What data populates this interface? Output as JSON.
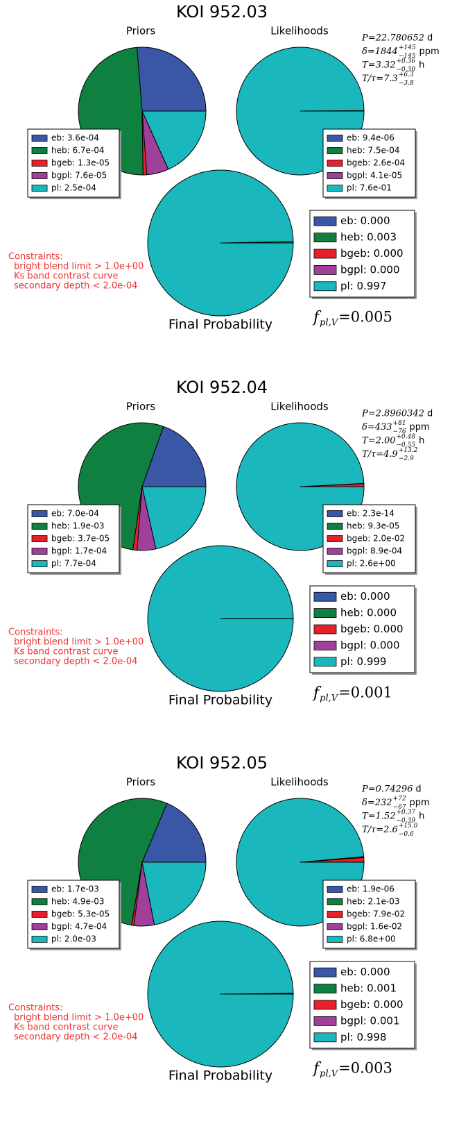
{
  "chart_data": [
    {
      "type": "pie",
      "title": "KOI 952.03",
      "colors": [
        "#3a56a6",
        "#0f8040",
        "#e8202a",
        "#a0409a",
        "#1ab8bc"
      ],
      "priors": {
        "title": "Priors",
        "values": [
          0.00036,
          0.00067,
          1.3e-05,
          7.6e-05,
          0.00025
        ],
        "value_labels": [
          "eb: 3.6e-04",
          "heb: 6.7e-04",
          "bgeb: 1.3e-05",
          "bgpl: 7.6e-05",
          "pl: 2.5e-04"
        ]
      },
      "likelihoods": {
        "title": "Likelihoods",
        "values": [
          9.4e-06,
          0.00075,
          0.00026,
          4.1e-05,
          0.76
        ],
        "value_labels": [
          "eb: 9.4e-06",
          "heb: 7.5e-04",
          "bgeb: 2.6e-04",
          "bgpl: 4.1e-05",
          "pl: 7.6e-01"
        ]
      },
      "final": {
        "title": "Final Probability",
        "values": [
          0,
          0.003,
          0,
          0,
          0.997
        ],
        "value_labels": [
          "eb: 0.000",
          "heb: 0.003",
          "bgeb: 0.000",
          "bgpl: 0.000",
          "pl: 0.997"
        ]
      },
      "stats": [
        {
          "lead": "P=22.780652",
          "unit": "d"
        },
        {
          "lead": "δ=1844",
          "sup": "+145",
          "sub": "−145",
          "unit": "ppm"
        },
        {
          "lead": "T=3.32",
          "sup": "+0.36",
          "sub": "−0.30",
          "unit": "h"
        },
        {
          "lead": "T/τ=7.3",
          "sup": "+6.3",
          "sub": "−3.8"
        }
      ],
      "constraints": [
        "Constraints:",
        "bright blend limit > 1.0e+00",
        "Ks band contrast curve",
        "secondary depth < 2.0e-04"
      ],
      "f_pl": {
        "symbol": "f",
        "sub": "pl,V",
        "text": "=0.005"
      }
    },
    {
      "type": "pie",
      "title": "KOI 952.04",
      "colors": [
        "#3a56a6",
        "#0f8040",
        "#e8202a",
        "#a0409a",
        "#1ab8bc"
      ],
      "priors": {
        "title": "Priors",
        "values": [
          0.0007,
          0.0019,
          3.7e-05,
          0.00017,
          0.00077
        ],
        "value_labels": [
          "eb: 7.0e-04",
          "heb: 1.9e-03",
          "bgeb: 3.7e-05",
          "bgpl: 1.7e-04",
          "pl: 7.7e-04"
        ]
      },
      "likelihoods": {
        "title": "Likelihoods",
        "values": [
          2.3e-14,
          9.3e-05,
          0.02,
          0.00089,
          2.6
        ],
        "value_labels": [
          "eb: 2.3e-14",
          "heb: 9.3e-05",
          "bgeb: 2.0e-02",
          "bgpl: 8.9e-04",
          "pl: 2.6e+00"
        ]
      },
      "final": {
        "title": "Final Probability",
        "values": [
          0,
          0,
          0,
          0,
          0.999
        ],
        "value_labels": [
          "eb: 0.000",
          "heb: 0.000",
          "bgeb: 0.000",
          "bgpl: 0.000",
          "pl: 0.999"
        ]
      },
      "stats": [
        {
          "lead": "P=2.8960342",
          "unit": "d"
        },
        {
          "lead": "δ=433",
          "sup": "+81",
          "sub": "−76",
          "unit": "ppm"
        },
        {
          "lead": "T=2.00",
          "sup": "+0.48",
          "sub": "−0.55",
          "unit": "h"
        },
        {
          "lead": "T/τ=4.9",
          "sup": "+13.2",
          "sub": "−2.9"
        }
      ],
      "constraints": [
        "Constraints:",
        "bright blend limit > 1.0e+00",
        "Ks band contrast curve",
        "secondary depth < 2.0e-04"
      ],
      "f_pl": {
        "symbol": "f",
        "sub": "pl,V",
        "text": "=0.001"
      }
    },
    {
      "type": "pie",
      "title": "KOI 952.05",
      "colors": [
        "#3a56a6",
        "#0f8040",
        "#e8202a",
        "#a0409a",
        "#1ab8bc"
      ],
      "priors": {
        "title": "Priors",
        "values": [
          0.0017,
          0.0049,
          5.3e-05,
          0.00047,
          0.002
        ],
        "value_labels": [
          "eb: 1.7e-03",
          "heb: 4.9e-03",
          "bgeb: 5.3e-05",
          "bgpl: 4.7e-04",
          "pl: 2.0e-03"
        ]
      },
      "likelihoods": {
        "title": "Likelihoods",
        "values": [
          1.9e-06,
          0.0021,
          0.079,
          0.016,
          6.8
        ],
        "value_labels": [
          "eb: 1.9e-06",
          "heb: 2.1e-03",
          "bgeb: 7.9e-02",
          "bgpl: 1.6e-02",
          "pl: 6.8e+00"
        ]
      },
      "final": {
        "title": "Final Probability",
        "values": [
          0,
          0.001,
          0,
          0.001,
          0.998
        ],
        "value_labels": [
          "eb: 0.000",
          "heb: 0.001",
          "bgeb: 0.000",
          "bgpl: 0.001",
          "pl: 0.998"
        ]
      },
      "stats": [
        {
          "lead": "P=0.74296",
          "unit": "d"
        },
        {
          "lead": "δ=232",
          "sup": "+72",
          "sub": "−67",
          "unit": "ppm"
        },
        {
          "lead": "T=1.52",
          "sup": "+0.37",
          "sub": "−0.39",
          "unit": "h"
        },
        {
          "lead": "T/τ=2.6",
          "sup": "+15.0",
          "sub": "−0.6"
        }
      ],
      "constraints": [
        "Constraints:",
        "bright blend limit > 1.0e+00",
        "Ks band contrast curve",
        "secondary depth < 2.0e-04"
      ],
      "f_pl": {
        "symbol": "f",
        "sub": "pl,V",
        "text": "=0.003"
      }
    }
  ]
}
